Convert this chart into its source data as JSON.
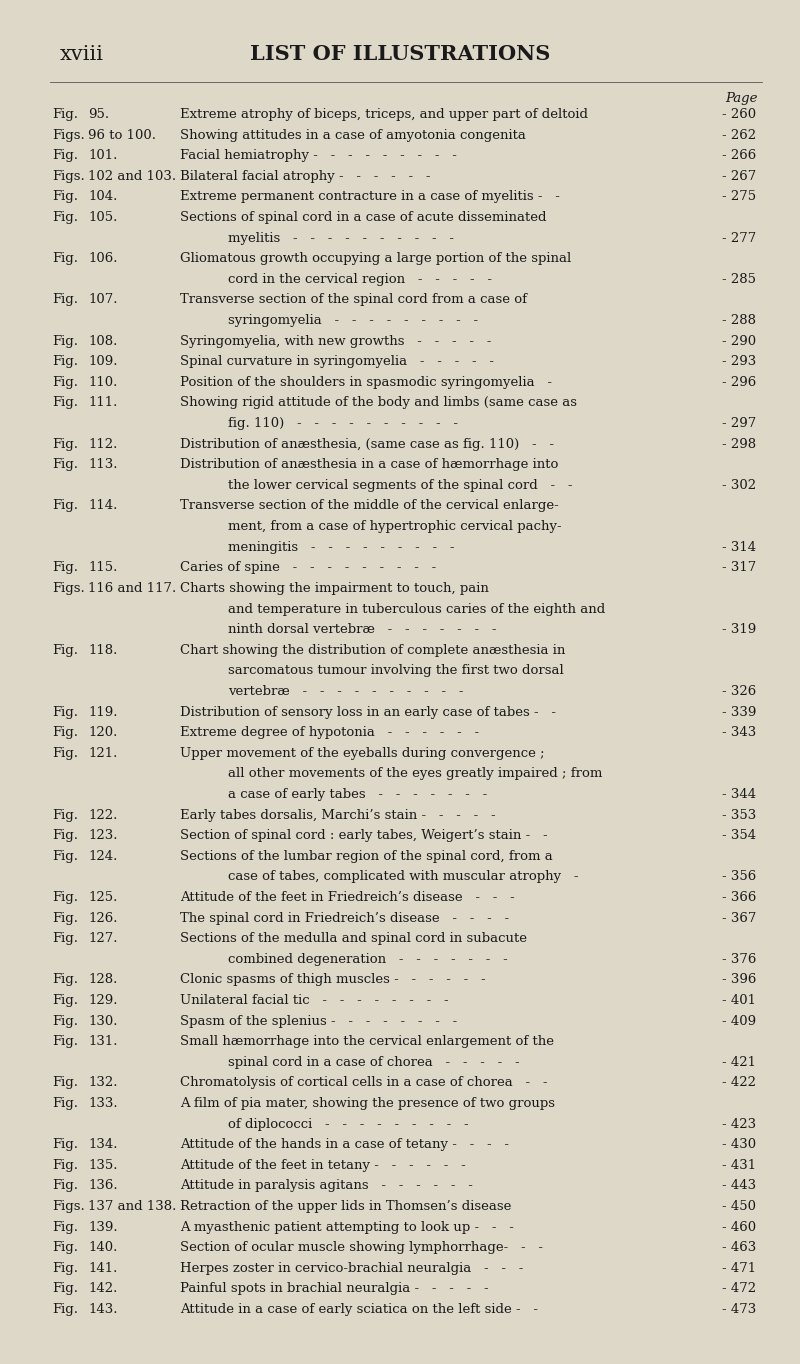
{
  "page_label": "xviii",
  "title": "LIST OF ILLUSTRATIONS",
  "header_right": "Page",
  "background_color": "#ddd8c8",
  "title_fontsize": 15,
  "body_fontsize": 9.5,
  "entries": [
    {
      "prefix": "Fig.",
      "num": "95.",
      "text": "Extreme atrophy of biceps, triceps, and upper part of deltoid",
      "page": "260",
      "indent2": false
    },
    {
      "prefix": "Figs.",
      "num": "96 to 100.",
      "text": "Showing attitudes in a case of amyotonia congenita",
      "page": "262",
      "indent2": false
    },
    {
      "prefix": "Fig.",
      "num": "101.",
      "text": "Facial hemiatrophy -   -   -   -   -   -   -   -   -",
      "page": "266",
      "indent2": false
    },
    {
      "prefix": "Figs.",
      "num": "102 and 103.",
      "text": "Bilateral facial atrophy -   -   -   -   -   -",
      "page": "267",
      "indent2": false
    },
    {
      "prefix": "Fig.",
      "num": "104.",
      "text": "Extreme permanent contracture in a case of myelitis -   -",
      "page": "275",
      "indent2": false
    },
    {
      "prefix": "Fig.",
      "num": "105.",
      "text": "Sections of spinal cord in a case of acute disseminated",
      "page": null,
      "indent2": false
    },
    {
      "prefix": "",
      "num": "",
      "text": "myelitis   -   -   -   -   -   -   -   -   -   -",
      "page": "277",
      "indent2": true
    },
    {
      "prefix": "Fig.",
      "num": "106.",
      "text": "Gliomatous growth occupying a large portion of the spinal",
      "page": null,
      "indent2": false
    },
    {
      "prefix": "",
      "num": "",
      "text": "cord in the cervical region   -   -   -   -   -",
      "page": "285",
      "indent2": true
    },
    {
      "prefix": "Fig.",
      "num": "107.",
      "text": "Transverse section of the spinal cord from a case of",
      "page": null,
      "indent2": false
    },
    {
      "prefix": "",
      "num": "",
      "text": "syringomyelia   -   -   -   -   -   -   -   -   -",
      "page": "288",
      "indent2": true
    },
    {
      "prefix": "Fig.",
      "num": "108.",
      "text": "Syringomyelia, with new growths   -   -   -   -   -",
      "page": "290",
      "indent2": false
    },
    {
      "prefix": "Fig.",
      "num": "109.",
      "text": "Spinal curvature in syringomyelia   -   -   -   -   -",
      "page": "293",
      "indent2": false
    },
    {
      "prefix": "Fig.",
      "num": "110.",
      "text": "Position of the shoulders in spasmodic syringomyelia   -",
      "page": "296",
      "indent2": false
    },
    {
      "prefix": "Fig.",
      "num": "111.",
      "text": "Showing rigid attitude of the body and limbs (same case as",
      "page": null,
      "indent2": false
    },
    {
      "prefix": "",
      "num": "",
      "text": "fig. 110)   -   -   -   -   -   -   -   -   -   -",
      "page": "297",
      "indent2": true
    },
    {
      "prefix": "Fig.",
      "num": "112.",
      "text": "Distribution of anæsthesia, (same case as fig. 110)   -   -",
      "page": "298",
      "indent2": false
    },
    {
      "prefix": "Fig.",
      "num": "113.",
      "text": "Distribution of anæsthesia in a case of hæmorrhage into",
      "page": null,
      "indent2": false
    },
    {
      "prefix": "",
      "num": "",
      "text": "the lower cervical segments of the spinal cord   -   -",
      "page": "302",
      "indent2": true
    },
    {
      "prefix": "Fig.",
      "num": "114.",
      "text": "Transverse section of the middle of the cervical enlarge-",
      "page": null,
      "indent2": false
    },
    {
      "prefix": "",
      "num": "",
      "text": "ment, from a case of hypertrophic cervical pachy-",
      "page": null,
      "indent2": true
    },
    {
      "prefix": "",
      "num": "",
      "text": "meningitis   -   -   -   -   -   -   -   -   -",
      "page": "314",
      "indent2": true
    },
    {
      "prefix": "Fig.",
      "num": "115.",
      "text": "Caries of spine   -   -   -   -   -   -   -   -   -",
      "page": "317",
      "indent2": false
    },
    {
      "prefix": "Figs.",
      "num": "116 and 117.",
      "text": "Charts showing the impairment to touch, pain",
      "page": null,
      "indent2": false
    },
    {
      "prefix": "",
      "num": "",
      "text": "and temperature in tuberculous caries of the eighth and",
      "page": null,
      "indent2": true
    },
    {
      "prefix": "",
      "num": "",
      "text": "ninth dorsal vertebræ   -   -   -   -   -   -   -",
      "page": "319",
      "indent2": true
    },
    {
      "prefix": "Fig.",
      "num": "118.",
      "text": "Chart showing the distribution of complete anæsthesia in",
      "page": null,
      "indent2": false
    },
    {
      "prefix": "",
      "num": "",
      "text": "sarcomatous tumour involving the first two dorsal",
      "page": null,
      "indent2": true
    },
    {
      "prefix": "",
      "num": "",
      "text": "vertebræ   -   -   -   -   -   -   -   -   -   -",
      "page": "326",
      "indent2": true
    },
    {
      "prefix": "Fig.",
      "num": "119.",
      "text": "Distribution of sensory loss in an early case of tabes -   -",
      "page": "339",
      "indent2": false
    },
    {
      "prefix": "Fig.",
      "num": "120.",
      "text": "Extreme degree of hypotonia   -   -   -   -   -   -",
      "page": "343",
      "indent2": false
    },
    {
      "prefix": "Fig.",
      "num": "121.",
      "text": "Upper movement of the eyeballs during convergence ;",
      "page": null,
      "indent2": false
    },
    {
      "prefix": "",
      "num": "",
      "text": "all other movements of the eyes greatly impaired ; from",
      "page": null,
      "indent2": true
    },
    {
      "prefix": "",
      "num": "",
      "text": "a case of early tabes   -   -   -   -   -   -   -",
      "page": "344",
      "indent2": true
    },
    {
      "prefix": "Fig.",
      "num": "122.",
      "text": "Early tabes dorsalis, Marchi’s stain -   -   -   -   -",
      "page": "353",
      "indent2": false
    },
    {
      "prefix": "Fig.",
      "num": "123.",
      "text": "Section of spinal cord : early tabes, Weigert’s stain -   -",
      "page": "354",
      "indent2": false
    },
    {
      "prefix": "Fig.",
      "num": "124.",
      "text": "Sections of the lumbar region of the spinal cord, from a",
      "page": null,
      "indent2": false
    },
    {
      "prefix": "",
      "num": "",
      "text": "case of tabes, complicated with muscular atrophy   -",
      "page": "356",
      "indent2": true
    },
    {
      "prefix": "Fig.",
      "num": "125.",
      "text": "Attitude of the feet in Friedreich’s disease   -   -   -",
      "page": "366",
      "indent2": false
    },
    {
      "prefix": "Fig.",
      "num": "126.",
      "text": "The spinal cord in Friedreich’s disease   -   -   -   -",
      "page": "367",
      "indent2": false
    },
    {
      "prefix": "Fig.",
      "num": "127.",
      "text": "Sections of the medulla and spinal cord in subacute",
      "page": null,
      "indent2": false
    },
    {
      "prefix": "",
      "num": "",
      "text": "combined degeneration   -   -   -   -   -   -   -",
      "page": "376",
      "indent2": true
    },
    {
      "prefix": "Fig.",
      "num": "128.",
      "text": "Clonic spasms of thigh muscles -   -   -   -   -   -",
      "page": "396",
      "indent2": false
    },
    {
      "prefix": "Fig.",
      "num": "129.",
      "text": "Unilateral facial tic   -   -   -   -   -   -   -   -",
      "page": "401",
      "indent2": false
    },
    {
      "prefix": "Fig.",
      "num": "130.",
      "text": "Spasm of the splenius -   -   -   -   -   -   -   -",
      "page": "409",
      "indent2": false
    },
    {
      "prefix": "Fig.",
      "num": "131.",
      "text": "Small hæmorrhage into the cervical enlargement of the",
      "page": null,
      "indent2": false
    },
    {
      "prefix": "",
      "num": "",
      "text": "spinal cord in a case of chorea   -   -   -   -   -",
      "page": "421",
      "indent2": true
    },
    {
      "prefix": "Fig.",
      "num": "132.",
      "text": "Chromatolysis of cortical cells in a case of chorea   -   -",
      "page": "422",
      "indent2": false
    },
    {
      "prefix": "Fig.",
      "num": "133.",
      "text": "A film of pia mater, showing the presence of two groups",
      "page": null,
      "indent2": false
    },
    {
      "prefix": "",
      "num": "",
      "text": "of diplococci   -   -   -   -   -   -   -   -   -",
      "page": "423",
      "indent2": true
    },
    {
      "prefix": "Fig.",
      "num": "134.",
      "text": "Attitude of the hands in a case of tetany -   -   -   -",
      "page": "430",
      "indent2": false
    },
    {
      "prefix": "Fig.",
      "num": "135.",
      "text": "Attitude of the feet in tetany -   -   -   -   -   -",
      "page": "431",
      "indent2": false
    },
    {
      "prefix": "Fig.",
      "num": "136.",
      "text": "Attitude in paralysis agitans   -   -   -   -   -   -",
      "page": "443",
      "indent2": false
    },
    {
      "prefix": "Figs.",
      "num": "137 and 138.",
      "text": "Retraction of the upper lids in Thomsen’s disease",
      "page": "450",
      "indent2": false
    },
    {
      "prefix": "Fig.",
      "num": "139.",
      "text": "A myasthenic patient attempting to look up -   -   -",
      "page": "460",
      "indent2": false
    },
    {
      "prefix": "Fig.",
      "num": "140.",
      "text": "Section of ocular muscle showing lymphorrhage-   -   -",
      "page": "463",
      "indent2": false
    },
    {
      "prefix": "Fig.",
      "num": "141.",
      "text": "Herpes zoster in cervico-brachial neuralgia   -   -   -",
      "page": "471",
      "indent2": false
    },
    {
      "prefix": "Fig.",
      "num": "142.",
      "text": "Painful spots in brachial neuralgia -   -   -   -   -",
      "page": "472",
      "indent2": false
    },
    {
      "prefix": "Fig.",
      "num": "143.",
      "text": "Attitude in a case of early sciatica on the left side -   -",
      "page": "473",
      "indent2": false
    }
  ]
}
